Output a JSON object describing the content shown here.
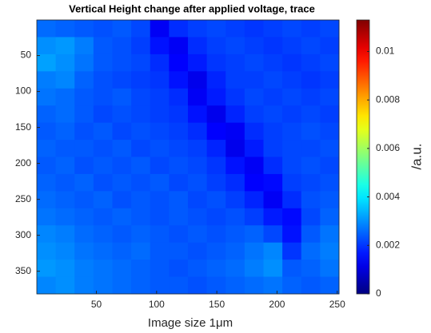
{
  "chart_data": {
    "type": "heatmap",
    "title": "Vertical Height change after applied voltage, trace",
    "x_label": "Image size 1μm",
    "colorbar_label": "/a.u.",
    "colormap": "jet",
    "xlim": [
      0.5,
      251.5
    ],
    "xticks": [
      50,
      100,
      150,
      200,
      250
    ],
    "ylim": [
      0.5,
      381.5
    ],
    "yticks": [
      50,
      100,
      150,
      200,
      250,
      300,
      350
    ],
    "y_reversed": true,
    "clim": [
      0,
      0.0113
    ],
    "cticks": [
      0,
      0.002,
      0.004,
      0.006,
      0.008,
      0.01
    ],
    "z": [
      [
        0.0026,
        0.0025,
        0.0024,
        0.0023,
        0.0024,
        0.0022,
        0.0013,
        0.0019,
        0.0021,
        0.0022,
        0.0021,
        0.002,
        0.0021,
        0.0022,
        0.0021,
        0.0022
      ],
      [
        0.003,
        0.0031,
        0.0028,
        0.0024,
        0.0023,
        0.0021,
        0.0016,
        0.0013,
        0.0019,
        0.0021,
        0.0022,
        0.0021,
        0.002,
        0.0021,
        0.0022,
        0.0021
      ],
      [
        0.0032,
        0.003,
        0.0027,
        0.0024,
        0.0023,
        0.0022,
        0.0019,
        0.0014,
        0.0017,
        0.002,
        0.0021,
        0.0022,
        0.0021,
        0.002,
        0.0021,
        0.0022
      ],
      [
        0.0028,
        0.0029,
        0.0025,
        0.0023,
        0.0022,
        0.0021,
        0.002,
        0.0016,
        0.0012,
        0.0018,
        0.0021,
        0.0021,
        0.0022,
        0.0021,
        0.002,
        0.0021
      ],
      [
        0.0027,
        0.0026,
        0.0024,
        0.0023,
        0.0024,
        0.0022,
        0.0021,
        0.0019,
        0.0013,
        0.0017,
        0.002,
        0.0022,
        0.0021,
        0.0022,
        0.0021,
        0.0022
      ],
      [
        0.0025,
        0.0026,
        0.0024,
        0.0022,
        0.0023,
        0.0022,
        0.0021,
        0.002,
        0.0016,
        0.0012,
        0.0018,
        0.0021,
        0.0022,
        0.0021,
        0.0022,
        0.0021
      ],
      [
        0.0024,
        0.0025,
        0.0023,
        0.0024,
        0.0022,
        0.0023,
        0.0022,
        0.0021,
        0.0019,
        0.0014,
        0.0013,
        0.0019,
        0.0021,
        0.0022,
        0.0023,
        0.0022
      ],
      [
        0.0025,
        0.0024,
        0.0024,
        0.0023,
        0.0024,
        0.0022,
        0.0023,
        0.0022,
        0.0021,
        0.0018,
        0.0012,
        0.0017,
        0.0021,
        0.0022,
        0.0022,
        0.0023
      ],
      [
        0.0024,
        0.0025,
        0.0023,
        0.0024,
        0.0023,
        0.0024,
        0.0022,
        0.0023,
        0.0022,
        0.002,
        0.0016,
        0.0013,
        0.0019,
        0.0022,
        0.0023,
        0.0022
      ],
      [
        0.0025,
        0.0024,
        0.0025,
        0.0023,
        0.0024,
        0.0023,
        0.0024,
        0.0022,
        0.0023,
        0.0021,
        0.0019,
        0.0014,
        0.0015,
        0.0021,
        0.0022,
        0.0023
      ],
      [
        0.0026,
        0.0025,
        0.0024,
        0.0025,
        0.0023,
        0.0024,
        0.0023,
        0.0024,
        0.0022,
        0.0023,
        0.0021,
        0.0018,
        0.0013,
        0.0019,
        0.0023,
        0.0024
      ],
      [
        0.0027,
        0.0026,
        0.0025,
        0.0024,
        0.0025,
        0.0024,
        0.0023,
        0.0024,
        0.0023,
        0.0022,
        0.0023,
        0.0021,
        0.0017,
        0.0015,
        0.0022,
        0.0025
      ],
      [
        0.0029,
        0.0028,
        0.0026,
        0.0025,
        0.0024,
        0.0025,
        0.0024,
        0.0023,
        0.0024,
        0.0023,
        0.0024,
        0.0025,
        0.0022,
        0.0016,
        0.0024,
        0.0027
      ],
      [
        0.003,
        0.0029,
        0.0027,
        0.0026,
        0.0025,
        0.0026,
        0.0024,
        0.0024,
        0.0023,
        0.0024,
        0.0025,
        0.0027,
        0.0029,
        0.002,
        0.0026,
        0.0028
      ],
      [
        0.0031,
        0.003,
        0.0028,
        0.0027,
        0.0026,
        0.0025,
        0.0024,
        0.0023,
        0.0024,
        0.0025,
        0.0026,
        0.0028,
        0.003,
        0.0024,
        0.0025,
        0.0027
      ],
      [
        0.0029,
        0.003,
        0.0028,
        0.0027,
        0.0026,
        0.0025,
        0.0024,
        0.0024,
        0.0023,
        0.0024,
        0.0025,
        0.0026,
        0.0027,
        0.0025,
        0.0024,
        0.0025
      ]
    ]
  }
}
